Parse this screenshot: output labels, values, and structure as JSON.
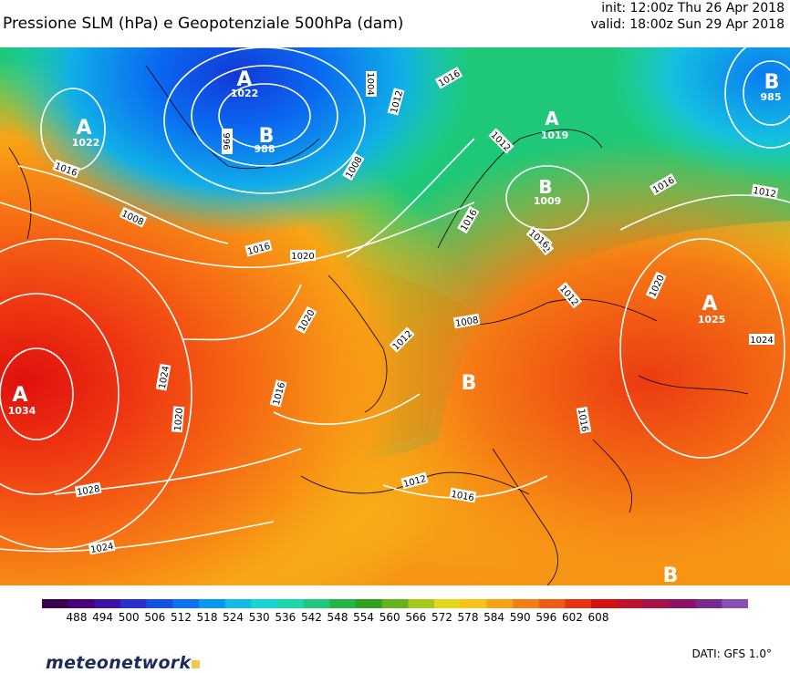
{
  "header": {
    "title": "Pressione SLM (hPa) e Geopotenziale 500hPa (dam)",
    "init": "init: 12:00z Thu 26 Apr 2018",
    "valid": "valid: 18:00z Sun 29 Apr 2018"
  },
  "pressure_centers": [
    {
      "letter": "A",
      "value": "1022"
    },
    {
      "letter": "A",
      "value": "1022"
    },
    {
      "letter": "B",
      "value": "988"
    },
    {
      "letter": "A",
      "value": "1019"
    },
    {
      "letter": "B",
      "value": "985"
    },
    {
      "letter": "B",
      "value": "1009"
    },
    {
      "letter": "A",
      "value": "1025"
    },
    {
      "letter": "A",
      "value": "1034"
    },
    {
      "letter": "B",
      "value": ""
    },
    {
      "letter": "B",
      "value": ""
    }
  ],
  "isobar_labels": [
    "1016",
    "1008",
    "1016",
    "1020",
    "1004",
    "1012",
    "1016",
    "1016",
    "1012",
    "1008",
    "996",
    "1012",
    "1016",
    "1020",
    "1012",
    "1016",
    "1008",
    "1012",
    "1016",
    "1012",
    "1024",
    "1016",
    "1020",
    "1024",
    "1020",
    "1028",
    "1024",
    "1012",
    "1016"
  ],
  "colorbar": {
    "ticks": [
      "488",
      "494",
      "500",
      "506",
      "512",
      "518",
      "524",
      "530",
      "536",
      "542",
      "548",
      "554",
      "560",
      "566",
      "572",
      "578",
      "584",
      "590",
      "596",
      "602",
      "608"
    ],
    "colors": [
      "#3a0050",
      "#4a0078",
      "#3c12a8",
      "#2a2fd0",
      "#1550e6",
      "#0a72f0",
      "#0598f0",
      "#10bce6",
      "#16d6d2",
      "#1ad8a8",
      "#1ec97c",
      "#24b548",
      "#30a020",
      "#62b418",
      "#a6c81a",
      "#e6d61a",
      "#f5c418",
      "#f7a216",
      "#f57e14",
      "#f15a12",
      "#e83212",
      "#d61010",
      "#c0102a",
      "#a8104a",
      "#8e1068",
      "#7a2a8e",
      "#8850b0"
    ]
  },
  "footer": {
    "logo_text": "meteonetwork",
    "dati": "DATI:  GFS  1.0°"
  }
}
